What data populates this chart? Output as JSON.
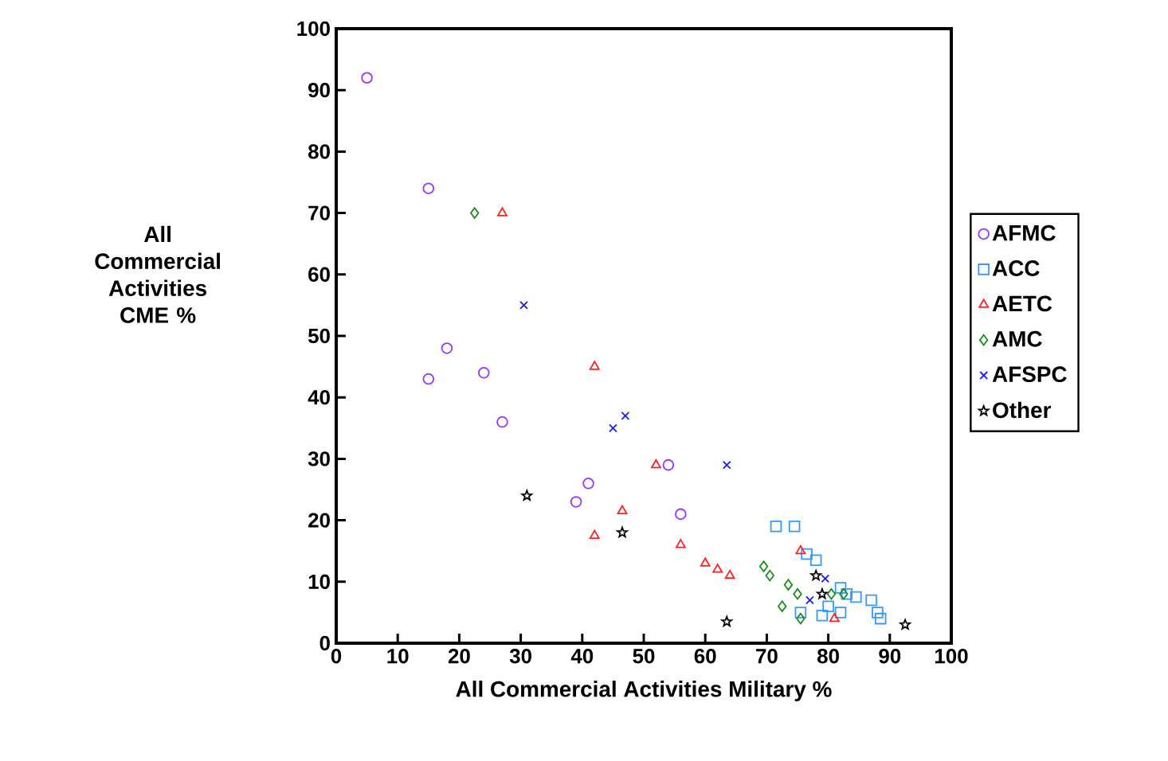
{
  "chart_data": {
    "type": "scatter",
    "xlabel": "All Commercial Activities Military %",
    "ylabel": "All Commercial Activities CME %",
    "xlim": [
      0,
      100
    ],
    "ylim": [
      0,
      100
    ],
    "xticks": [
      0,
      10,
      20,
      30,
      40,
      50,
      60,
      70,
      80,
      90,
      100
    ],
    "yticks": [
      0,
      10,
      20,
      30,
      40,
      50,
      60,
      70,
      80,
      90,
      100
    ],
    "grid": false,
    "legend": "right",
    "series": [
      {
        "name": "AFMC",
        "color": "#9933ff",
        "marker": "circle",
        "x": [
          5,
          15,
          15,
          18,
          24,
          27,
          39,
          41,
          54,
          56
        ],
        "values": [
          92,
          74,
          43,
          48,
          44,
          36,
          23,
          26,
          29,
          21
        ]
      },
      {
        "name": "ACC",
        "color": "#3399ff",
        "marker": "square",
        "x": [
          71.5,
          74.5,
          76.5,
          78,
          82,
          83,
          84.5,
          87,
          88,
          88.5,
          79,
          82,
          75.5,
          80
        ],
        "values": [
          19,
          19,
          14.5,
          13.5,
          9,
          8,
          7.5,
          7,
          5,
          4,
          4.5,
          5,
          5,
          6
        ]
      },
      {
        "name": "AETC",
        "color": "#ff2020",
        "marker": "triangle",
        "x": [
          27,
          42,
          52,
          46.5,
          42,
          56,
          60,
          62,
          64,
          75.5,
          81
        ],
        "values": [
          70,
          45,
          29,
          21.5,
          17.5,
          16,
          13,
          12,
          11,
          15,
          4
        ]
      },
      {
        "name": "AMC",
        "color": "#1a8c1a",
        "marker": "diamond",
        "x": [
          22.5,
          69.5,
          70.5,
          73.5,
          75,
          72.5,
          75.5,
          80.5,
          82.5
        ],
        "values": [
          70,
          12.5,
          11,
          9.5,
          8,
          6,
          4,
          8,
          8
        ]
      },
      {
        "name": "AFSPC",
        "color": "#1a1aff",
        "marker": "cross",
        "x": [
          30.5,
          45,
          47,
          63.5,
          79.5,
          77
        ],
        "values": [
          55,
          35,
          37,
          29,
          10.5,
          7
        ]
      },
      {
        "name": "Other",
        "color": "#000000",
        "marker": "star",
        "x": [
          31,
          46.5,
          63.5,
          92.5,
          78,
          79
        ],
        "values": [
          24,
          18,
          3.5,
          3,
          11,
          8
        ]
      }
    ]
  }
}
